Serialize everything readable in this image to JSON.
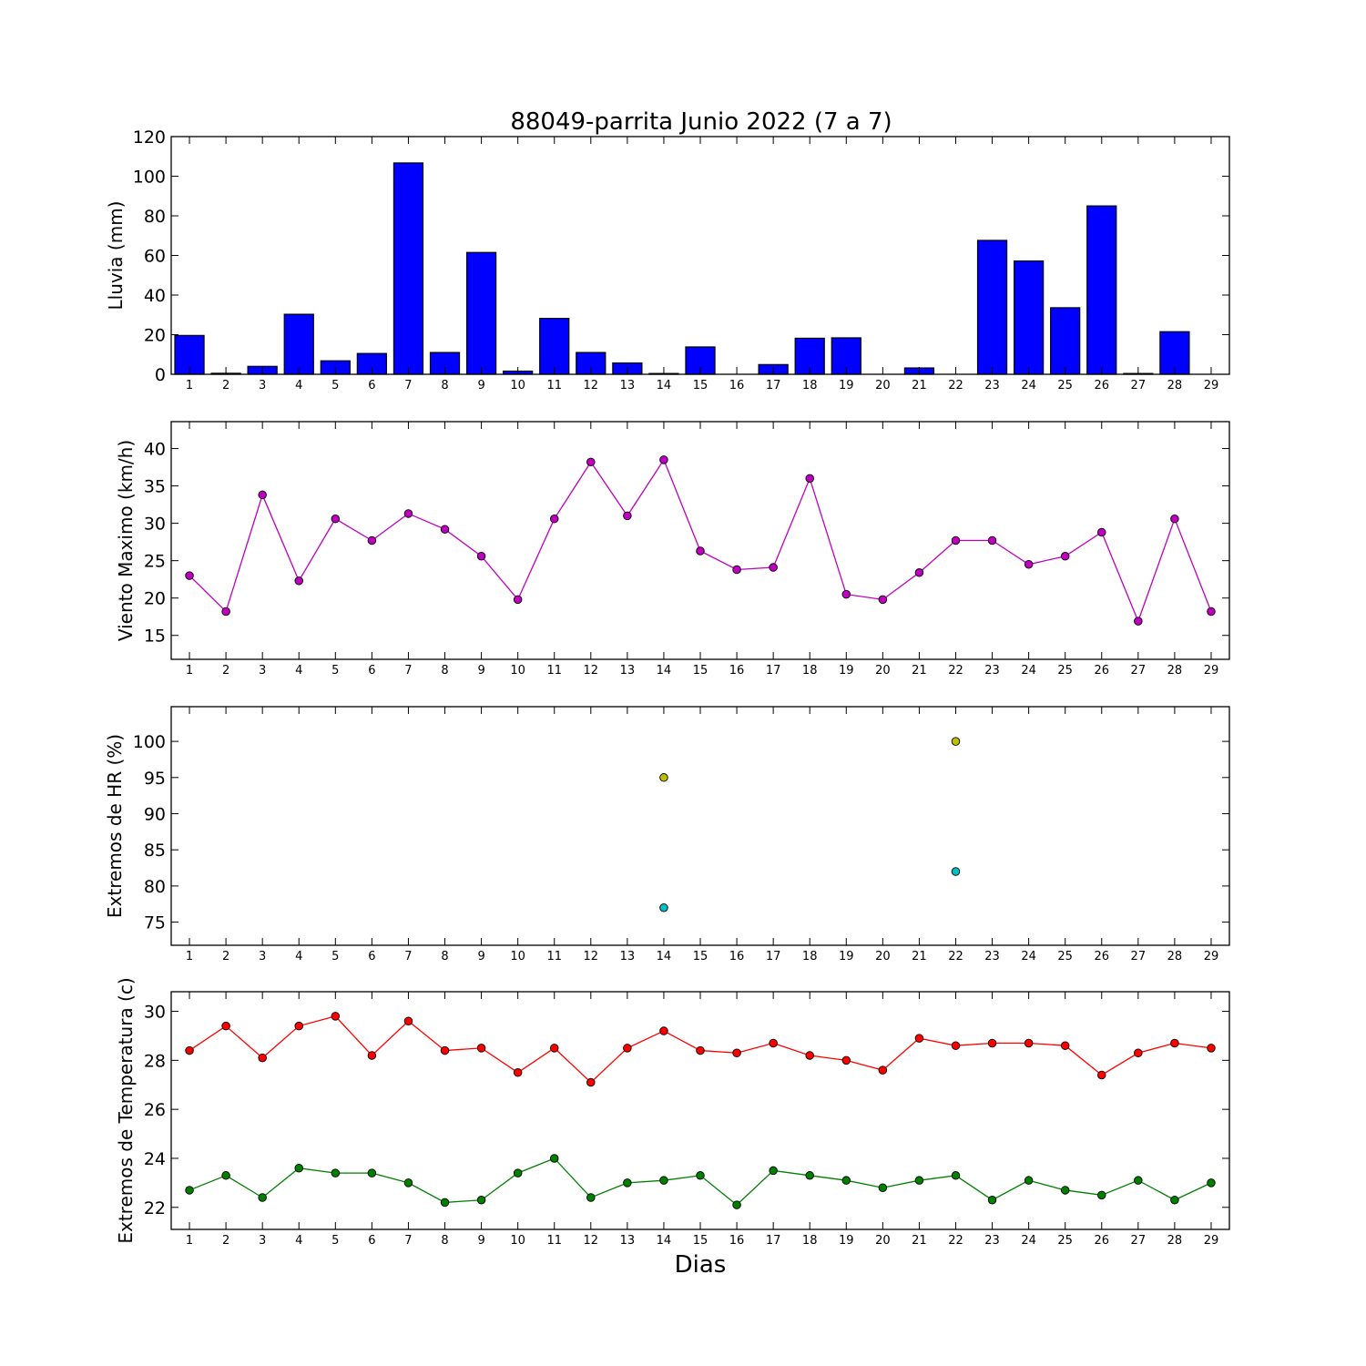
{
  "title": "88049-parrita Junio 2022  (7 a 7)",
  "xlabel": "Dias",
  "days": [
    1,
    2,
    3,
    4,
    5,
    6,
    7,
    8,
    9,
    10,
    11,
    12,
    13,
    14,
    15,
    16,
    17,
    18,
    19,
    20,
    21,
    22,
    23,
    24,
    25,
    26,
    27,
    28,
    29
  ],
  "chart_data": [
    {
      "type": "bar",
      "ylabel": "Lluvia (mm)",
      "ylim": [
        0,
        120
      ],
      "yticks": [
        0,
        20,
        40,
        60,
        80,
        100,
        120
      ],
      "xlim": [
        0.5,
        29.5
      ],
      "categories": [
        1,
        2,
        3,
        4,
        5,
        6,
        7,
        8,
        9,
        10,
        11,
        12,
        13,
        14,
        15,
        16,
        17,
        18,
        19,
        20,
        21,
        22,
        23,
        24,
        25,
        26,
        27,
        28,
        29
      ],
      "series": [
        {
          "values": [
            19.6,
            0.5,
            4.0,
            30.3,
            6.8,
            10.5,
            106.7,
            11.0,
            61.5,
            1.6,
            28.2,
            11.0,
            5.7,
            0.4,
            13.8,
            0.0,
            4.9,
            18.2,
            18.4,
            0.0,
            3.2,
            0.0,
            67.6,
            57.2,
            33.6,
            85.0,
            0.4,
            21.5,
            0.0
          ],
          "color": "#0000ff"
        }
      ]
    },
    {
      "type": "line",
      "ylabel": "Viento Maximo (km/h)",
      "ylim": [
        11.8,
        43.6
      ],
      "yticks": [
        15,
        20,
        25,
        30,
        35,
        40
      ],
      "xlim": [
        0.5,
        29.5
      ],
      "x": [
        1,
        2,
        3,
        4,
        5,
        6,
        7,
        8,
        9,
        10,
        11,
        12,
        13,
        14,
        15,
        16,
        17,
        18,
        19,
        20,
        21,
        22,
        23,
        24,
        25,
        26,
        27,
        28,
        29
      ],
      "series": [
        {
          "values": [
            23.0,
            18.2,
            33.8,
            22.3,
            30.6,
            27.7,
            31.3,
            29.2,
            25.6,
            19.8,
            30.6,
            38.2,
            31.0,
            38.5,
            26.3,
            23.8,
            24.1,
            36.0,
            20.5,
            19.8,
            23.4,
            27.7,
            27.7,
            24.5,
            25.6,
            28.8,
            16.9,
            30.6,
            18.2
          ],
          "color": "#bf00bf"
        }
      ]
    },
    {
      "type": "scatter",
      "ylabel": "Extremos de HR (%)",
      "ylim": [
        71.8,
        104.8
      ],
      "yticks": [
        75,
        80,
        85,
        90,
        95,
        100
      ],
      "xlim": [
        0.5,
        29.5
      ],
      "series": [
        {
          "x": [
            14,
            22
          ],
          "values": [
            95,
            100
          ],
          "color": "#bfbf00"
        },
        {
          "x": [
            14,
            22
          ],
          "values": [
            77,
            82
          ],
          "color": "#00bfbf"
        }
      ]
    },
    {
      "type": "line",
      "ylabel": "Extremos de Temperatura (c)",
      "ylim": [
        21.1,
        30.8
      ],
      "yticks": [
        22,
        24,
        26,
        28,
        30
      ],
      "xlim": [
        0.5,
        29.5
      ],
      "x": [
        1,
        2,
        3,
        4,
        5,
        6,
        7,
        8,
        9,
        10,
        11,
        12,
        13,
        14,
        15,
        16,
        17,
        18,
        19,
        20,
        21,
        22,
        23,
        24,
        25,
        26,
        27,
        28,
        29
      ],
      "series": [
        {
          "values": [
            28.4,
            29.4,
            28.1,
            29.4,
            29.8,
            28.2,
            29.6,
            28.4,
            28.5,
            27.5,
            28.5,
            27.1,
            28.5,
            29.2,
            28.4,
            28.3,
            28.7,
            28.2,
            28.0,
            27.6,
            28.9,
            28.6,
            28.7,
            28.7,
            28.6,
            27.4,
            28.3,
            28.7,
            28.5
          ],
          "color": "#ff0000"
        },
        {
          "values": [
            22.7,
            23.3,
            22.4,
            23.6,
            23.4,
            23.4,
            23.0,
            22.2,
            22.3,
            23.4,
            24.0,
            22.4,
            23.0,
            23.1,
            23.3,
            22.1,
            23.5,
            23.3,
            23.1,
            22.8,
            23.1,
            23.3,
            22.3,
            23.1,
            22.7,
            22.5,
            23.1,
            22.3,
            23.0
          ],
          "color": "#007f00"
        }
      ]
    }
  ]
}
